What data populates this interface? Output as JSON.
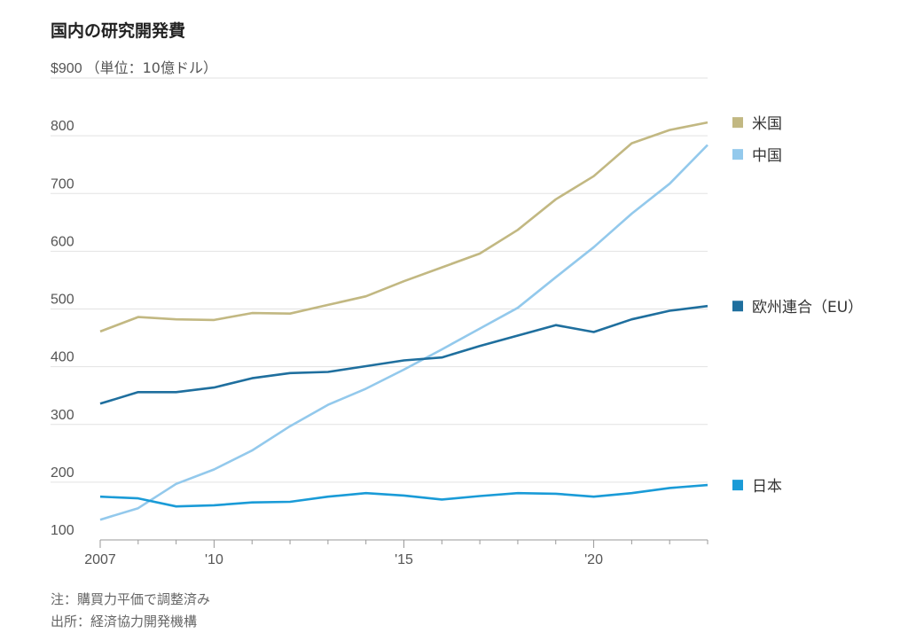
{
  "title": "国内の研究開発費",
  "notes": {
    "note1": "注：購買力平価で調整済み",
    "note2": "出所：経済協力開発機構"
  },
  "chart_data": {
    "type": "line",
    "x": [
      2007,
      2008,
      2009,
      2010,
      2011,
      2012,
      2013,
      2014,
      2015,
      2016,
      2017,
      2018,
      2019,
      2020,
      2021,
      2022,
      2023
    ],
    "x_tick_values": [
      2007,
      2010,
      2015,
      2020
    ],
    "x_tick_labels": [
      "2007",
      "'10",
      "'15",
      "'20"
    ],
    "ylim": [
      100,
      900
    ],
    "y_ticks": [
      100,
      200,
      300,
      400,
      500,
      600,
      700,
      800,
      900
    ],
    "y_tick_labels": [
      "100",
      "200",
      "300",
      "400",
      "500",
      "600",
      "700",
      "800",
      "$900"
    ],
    "ylabel": "（単位：10億ドル）",
    "grid": true,
    "legend_position": "right",
    "series": [
      {
        "name": "米国",
        "color": "#c2b882",
        "values": [
          461,
          486,
          482,
          481,
          493,
          492,
          507,
          522,
          548,
          572,
          596,
          637,
          690,
          730,
          787,
          810,
          823
        ]
      },
      {
        "name": "中国",
        "color": "#93c9ec",
        "values": [
          135,
          155,
          197,
          222,
          255,
          297,
          334,
          362,
          395,
          430,
          466,
          502,
          555,
          607,
          665,
          717,
          784
        ]
      },
      {
        "name": "欧州連合（EU）",
        "color": "#1f6f9e",
        "values": [
          336,
          356,
          356,
          364,
          380,
          389,
          391,
          401,
          411,
          416,
          436,
          454,
          472,
          460,
          482,
          497,
          505
        ]
      },
      {
        "name": "日本",
        "color": "#1a9bd7",
        "values": [
          175,
          172,
          158,
          160,
          165,
          166,
          175,
          181,
          177,
          170,
          176,
          181,
          180,
          175,
          181,
          190,
          195
        ]
      }
    ]
  }
}
